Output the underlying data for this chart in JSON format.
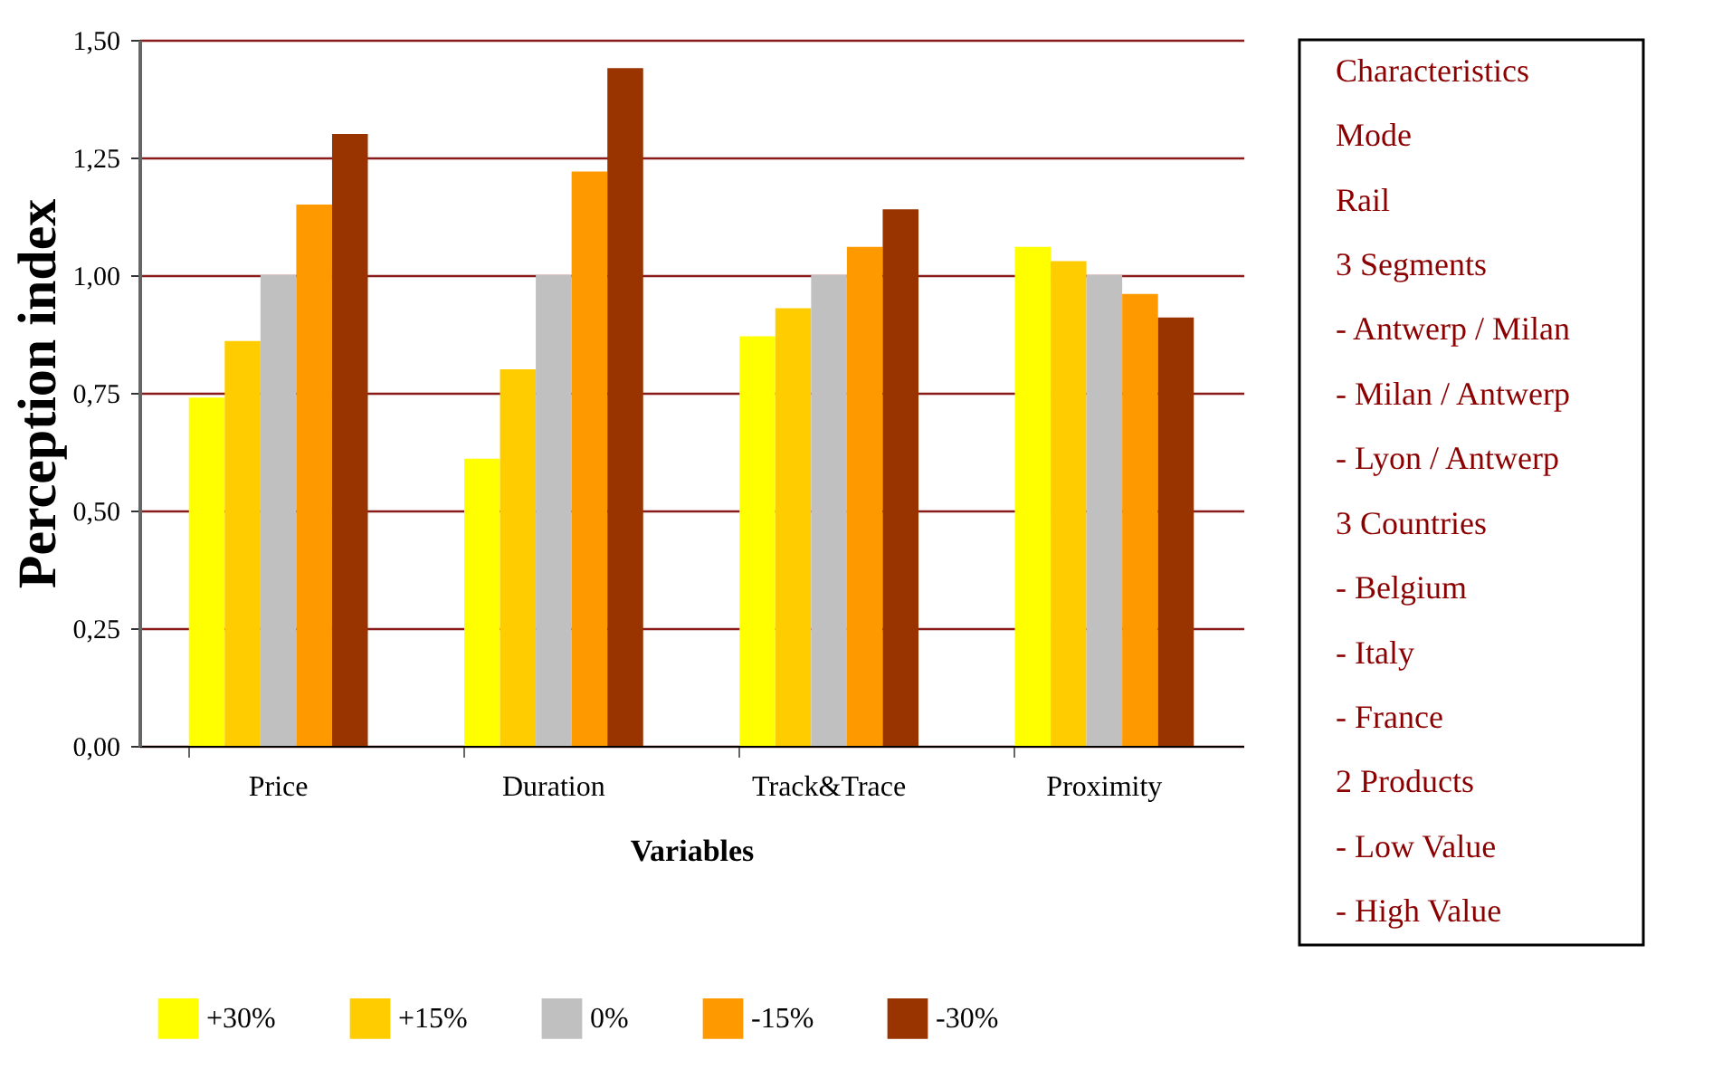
{
  "chart_data": {
    "type": "bar",
    "xlabel": "Variables",
    "ylabel": "Perception index",
    "categories": [
      "Price",
      "Duration",
      "Track&Trace",
      "Proximity"
    ],
    "series": [
      {
        "name": "+30%",
        "color": "#ffff00",
        "values": [
          0.74,
          0.61,
          0.87,
          1.06
        ]
      },
      {
        "name": "+15%",
        "color": "#ffcc00",
        "values": [
          0.86,
          0.8,
          0.93,
          1.03
        ]
      },
      {
        "name": "0%",
        "color": "#c0c0c0",
        "values": [
          1.0,
          1.0,
          1.0,
          1.0
        ]
      },
      {
        "name": "-15%",
        "color": "#ff9900",
        "values": [
          1.15,
          1.22,
          1.06,
          0.96
        ]
      },
      {
        "name": "-30%",
        "color": "#993300",
        "values": [
          1.3,
          1.44,
          1.14,
          0.91
        ]
      }
    ],
    "ylim": [
      0,
      1.5
    ],
    "yticks": [
      {
        "value": 0,
        "label": "0,00"
      },
      {
        "value": 0.25,
        "label": "0,25"
      },
      {
        "value": 0.5,
        "label": "0,50"
      },
      {
        "value": 0.75,
        "label": "0,75"
      },
      {
        "value": 1,
        "label": "1,00"
      },
      {
        "value": 1.25,
        "label": "1,25"
      },
      {
        "value": 1.5,
        "label": "1,50"
      }
    ],
    "grid": "y",
    "legend": "bottom",
    "annotations": [
      "Characteristics",
      "Mode",
      "Rail",
      "3 Segments",
      "- Antwerp /   Milan",
      "- Milan /   Antwerp",
      "- Lyon /   Antwerp",
      "3 Countries",
      "- Belgium",
      "- Italy",
      "- France",
      "2 Products",
      "- Low Value",
      "- High Value"
    ]
  }
}
